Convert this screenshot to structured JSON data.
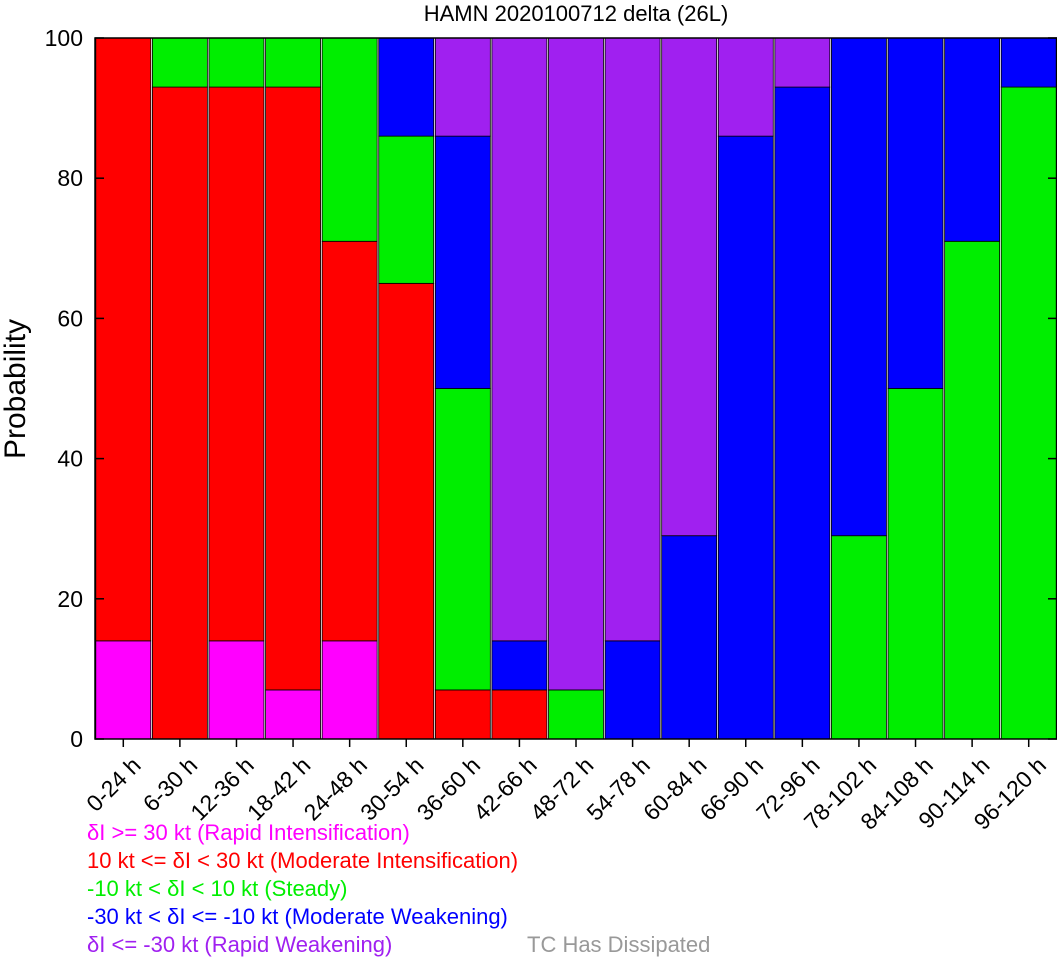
{
  "chart_data": {
    "type": "bar",
    "stacked": true,
    "title": "HAMN 2020100712 delta (26L)",
    "ylabel": "Probability",
    "xlabel": "",
    "ylim": [
      0,
      100
    ],
    "yticks": [
      0,
      20,
      40,
      60,
      80,
      100
    ],
    "grid": false,
    "categories": [
      "0-24 h",
      "6-30 h",
      "12-36 h",
      "18-42 h",
      "24-48 h",
      "30-54 h",
      "36-60 h",
      "42-66 h",
      "48-72 h",
      "54-78 h",
      "60-84 h",
      "66-90 h",
      "72-96 h",
      "78-102 h",
      "84-108 h",
      "90-114 h",
      "96-120 h"
    ],
    "series": [
      {
        "key": "ri",
        "color": "#ff00ff",
        "values": [
          14,
          0,
          14,
          7,
          14,
          0,
          0,
          0,
          0,
          0,
          0,
          0,
          0,
          0,
          0,
          0,
          0
        ]
      },
      {
        "key": "mi",
        "color": "#ff0000",
        "values": [
          86,
          93,
          79,
          86,
          57,
          65,
          7,
          7,
          0,
          0,
          0,
          0,
          0,
          0,
          0,
          0,
          0
        ]
      },
      {
        "key": "st",
        "color": "#00ee00",
        "values": [
          0,
          7,
          7,
          7,
          29,
          21,
          43,
          0,
          7,
          0,
          0,
          0,
          0,
          29,
          50,
          71,
          93
        ]
      },
      {
        "key": "mw",
        "color": "#0000ff",
        "values": [
          0,
          0,
          0,
          0,
          0,
          14,
          36,
          7,
          0,
          14,
          29,
          86,
          93,
          71,
          50,
          29,
          7
        ]
      },
      {
        "key": "rw",
        "color": "#a020f0",
        "values": [
          0,
          0,
          0,
          0,
          0,
          0,
          14,
          86,
          93,
          86,
          71,
          14,
          7,
          0,
          0,
          0,
          0
        ]
      }
    ]
  },
  "legend": [
    {
      "key": "ri",
      "text": "δI >= 30 kt (Rapid Intensification)",
      "color": "#ff00ff"
    },
    {
      "key": "mi",
      "text": "10 kt <= δI < 30 kt (Moderate Intensification)",
      "color": "#ff0000"
    },
    {
      "key": "st",
      "text": "-10 kt < δI < 10 kt (Steady)",
      "color": "#00ee00"
    },
    {
      "key": "mw",
      "text": "-30 kt < δI <= -10 kt (Moderate Weakening)",
      "color": "#0000ff"
    },
    {
      "key": "rw",
      "text": "δI <= -30 kt (Rapid Weakening)",
      "color": "#a020f0"
    }
  ],
  "dissipated": {
    "text": "TC Has Dissipated",
    "color": "#999999"
  }
}
